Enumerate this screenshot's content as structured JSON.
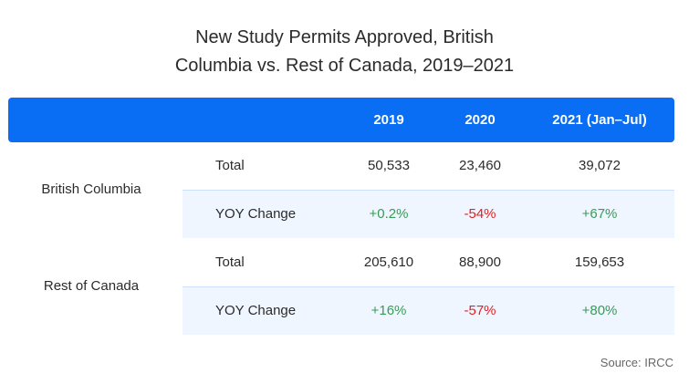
{
  "chart_data": {
    "type": "table",
    "title": "New Study Permits Approved, British Columbia vs. Rest of Canada, 2019–2021",
    "title_lines": [
      "New Study Permits Approved, British",
      "Columbia vs. Rest of Canada, 2019–2021"
    ],
    "columns": [
      "2019",
      "2020",
      "2021 (Jan–Jul)"
    ],
    "groups": [
      {
        "name": "British Columbia",
        "rows": [
          {
            "metric": "Total",
            "values": [
              "50,533",
              "23,460",
              "39,072"
            ]
          },
          {
            "metric": "YOY Change",
            "values": [
              "+0.2%",
              "-54%",
              "+67%"
            ]
          }
        ]
      },
      {
        "name": "Rest of Canada",
        "rows": [
          {
            "metric": "Total",
            "values": [
              "205,610",
              "88,900",
              "159,653"
            ]
          },
          {
            "metric": "YOY Change",
            "values": [
              "+16%",
              "-57%",
              "+80%"
            ]
          }
        ]
      }
    ],
    "source": "Source: IRCC"
  },
  "colors": {
    "header_bg": "#0a6ef5",
    "positive": "#3a9a57",
    "negative": "#e02020",
    "alt_row": "#f0f6ff"
  }
}
